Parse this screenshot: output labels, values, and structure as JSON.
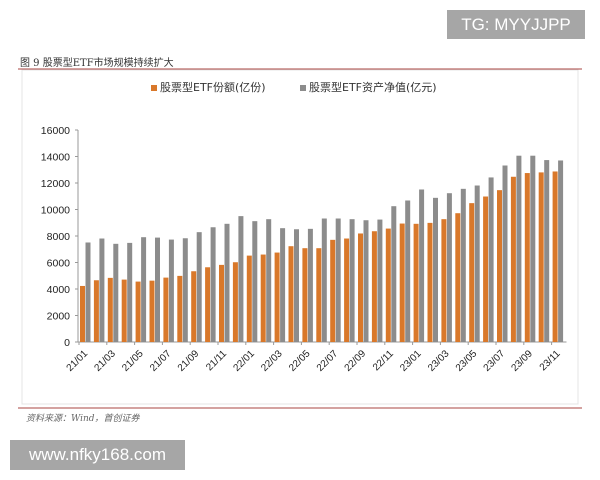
{
  "watermark_top": "TG: MYYJJPP",
  "watermark_bottom": "www.nfky168.com",
  "figure_title": "图 9 股票型ETF市场规模持续扩大",
  "source": "资料来源：Wind，首创证券",
  "colors": {
    "share": "#d9782a",
    "nav": "#8c8c8c",
    "rule": "#a94442"
  },
  "chart_data": {
    "type": "bar",
    "title": "",
    "xlabel": "",
    "ylabel": "",
    "ylim": [
      0,
      16000
    ],
    "yticks": [
      0,
      2000,
      4000,
      6000,
      8000,
      10000,
      12000,
      14000,
      16000
    ],
    "legend_position": "top",
    "grid": false,
    "categories": [
      "21/01",
      "21/02",
      "21/03",
      "21/04",
      "21/05",
      "21/06",
      "21/07",
      "21/08",
      "21/09",
      "21/10",
      "21/11",
      "21/12",
      "22/01",
      "22/02",
      "22/03",
      "22/04",
      "22/05",
      "22/06",
      "22/07",
      "22/08",
      "22/09",
      "22/10",
      "22/11",
      "22/12",
      "23/01",
      "23/02",
      "23/03",
      "23/04",
      "23/05",
      "23/06",
      "23/07",
      "23/08",
      "23/09",
      "23/10",
      "23/11"
    ],
    "tick_labels": [
      "21/01",
      "21/03",
      "21/05",
      "21/07",
      "21/09",
      "21/11",
      "22/01",
      "22/03",
      "22/05",
      "22/07",
      "22/09",
      "22/11",
      "23/01",
      "23/03",
      "23/05",
      "23/07",
      "23/09",
      "23/11"
    ],
    "series": [
      {
        "name": "股票型ETF份额(亿份)",
        "values": [
          4230,
          4660,
          4840,
          4710,
          4560,
          4630,
          4860,
          4990,
          5340,
          5640,
          5820,
          6020,
          6520,
          6600,
          6750,
          7230,
          7080,
          7080,
          7710,
          7810,
          8190,
          8360,
          8560,
          8940,
          8920,
          8990,
          9270,
          9720,
          10480,
          10980,
          11460,
          12470,
          12750,
          12800,
          12870
        ]
      },
      {
        "name": "股票型ETF资产净值(亿元)",
        "values": [
          7510,
          7810,
          7410,
          7480,
          7910,
          7880,
          7730,
          7830,
          8290,
          8660,
          8920,
          9500,
          9120,
          9270,
          8590,
          8510,
          8540,
          9320,
          9320,
          9270,
          9190,
          9240,
          10250,
          10680,
          11510,
          10880,
          11230,
          11560,
          11810,
          12420,
          13320,
          14060,
          14060,
          13730,
          13700
        ]
      }
    ]
  }
}
